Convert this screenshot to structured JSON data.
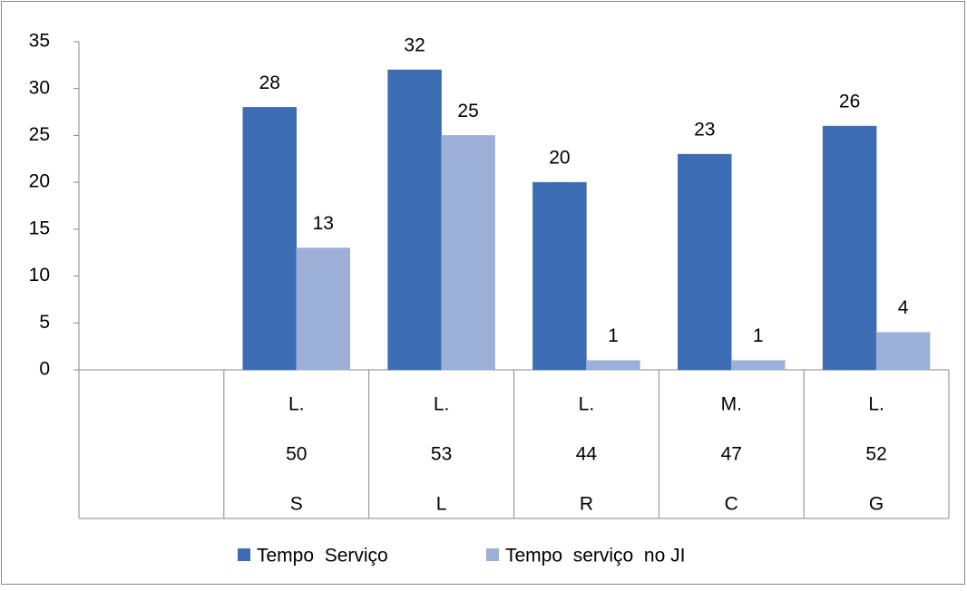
{
  "chart_data": {
    "type": "bar",
    "categories": [
      null,
      [
        "L.",
        "50",
        "S"
      ],
      [
        "L.",
        "53",
        "L"
      ],
      [
        "L.",
        "44",
        "R"
      ],
      [
        "M.",
        "47",
        "C"
      ],
      [
        "L.",
        "52",
        "G"
      ]
    ],
    "series": [
      {
        "name": "Tempo  Serviço",
        "color": "#3b6cb4",
        "values": [
          null,
          28,
          32,
          20,
          23,
          26
        ]
      },
      {
        "name": "Tempo  serviço  no JI",
        "color": "#9cafd7",
        "values": [
          null,
          13,
          25,
          1,
          1,
          4
        ]
      }
    ],
    "ylim": [
      0,
      35
    ],
    "yticks": [
      0,
      5,
      10,
      15,
      20,
      25,
      30,
      35
    ],
    "legend": "bottom"
  }
}
